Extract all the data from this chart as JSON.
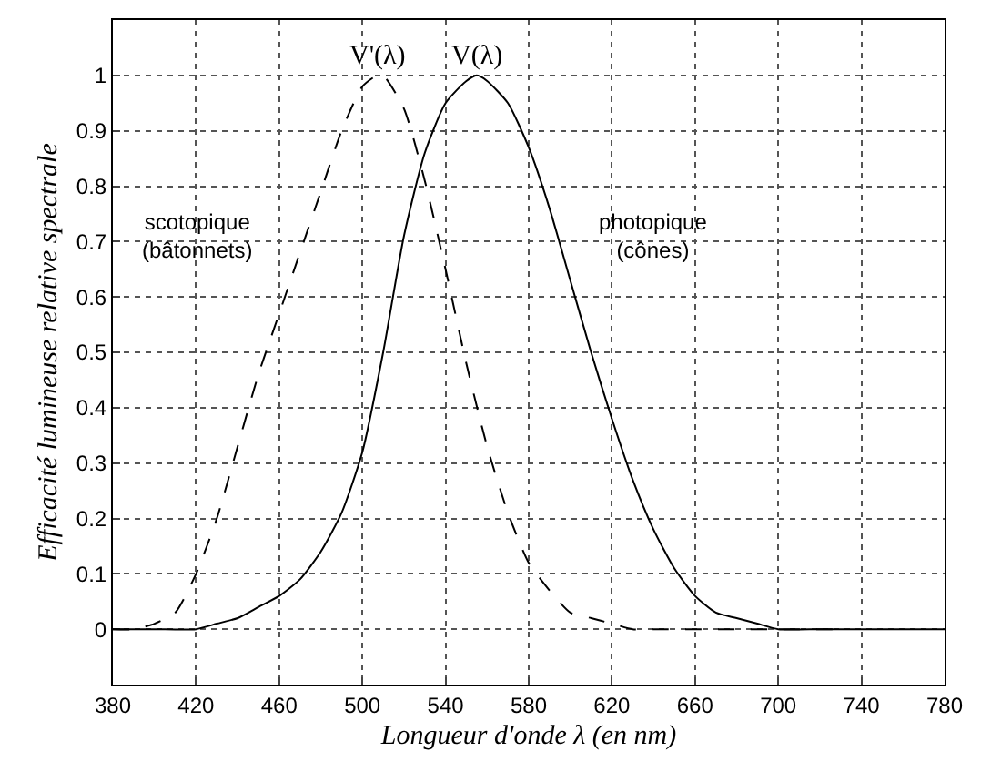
{
  "chart_data": {
    "type": "line",
    "xlabel": "Longueur d'onde λ (en nm)",
    "ylabel": "Efficacité lumineuse relative spectrale",
    "xlim": [
      380,
      780
    ],
    "xticks": [
      380,
      420,
      460,
      500,
      540,
      580,
      620,
      660,
      700,
      740,
      780
    ],
    "ylim": [
      -0.1,
      1.1
    ],
    "yticks": [
      0,
      0.1,
      0.2,
      0.3,
      0.4,
      0.5,
      0.6,
      0.7,
      0.8,
      0.9,
      1
    ],
    "grid": true,
    "legend": false,
    "marker": "none",
    "series": [
      {
        "name": "V'(λ)",
        "color": "#000000",
        "line_style": "dashed",
        "x": [
          380,
          390,
          400,
          410,
          420,
          430,
          440,
          450,
          460,
          470,
          480,
          490,
          500,
          507,
          510,
          520,
          530,
          540,
          550,
          560,
          570,
          580,
          590,
          600,
          610,
          620,
          630,
          640,
          660,
          680,
          700,
          730
        ],
        "values": [
          0.0,
          0.0,
          0.01,
          0.03,
          0.1,
          0.2,
          0.33,
          0.46,
          0.57,
          0.68,
          0.79,
          0.9,
          0.98,
          1.0,
          1.0,
          0.94,
          0.81,
          0.65,
          0.48,
          0.33,
          0.21,
          0.12,
          0.07,
          0.03,
          0.02,
          0.01,
          0.0,
          0.0,
          0.0,
          0.0,
          0.0,
          0.0
        ]
      },
      {
        "name": "V(λ)",
        "color": "#000000",
        "line_style": "solid",
        "x": [
          380,
          400,
          420,
          430,
          440,
          450,
          460,
          470,
          480,
          490,
          500,
          510,
          520,
          530,
          540,
          550,
          555,
          560,
          570,
          580,
          590,
          600,
          610,
          620,
          630,
          640,
          650,
          660,
          670,
          680,
          690,
          700,
          720,
          740,
          780
        ],
        "values": [
          0.0,
          0.0,
          0.0,
          0.01,
          0.02,
          0.04,
          0.06,
          0.09,
          0.14,
          0.21,
          0.32,
          0.5,
          0.71,
          0.86,
          0.95,
          0.99,
          1.0,
          0.99,
          0.95,
          0.87,
          0.76,
          0.63,
          0.5,
          0.38,
          0.27,
          0.18,
          0.11,
          0.06,
          0.03,
          0.02,
          0.01,
          0.0,
          0.0,
          0.0,
          0.0
        ]
      }
    ],
    "annotations": [
      "scotopique\n(bâtonnets)",
      "photopique\n(cônes)"
    ]
  }
}
